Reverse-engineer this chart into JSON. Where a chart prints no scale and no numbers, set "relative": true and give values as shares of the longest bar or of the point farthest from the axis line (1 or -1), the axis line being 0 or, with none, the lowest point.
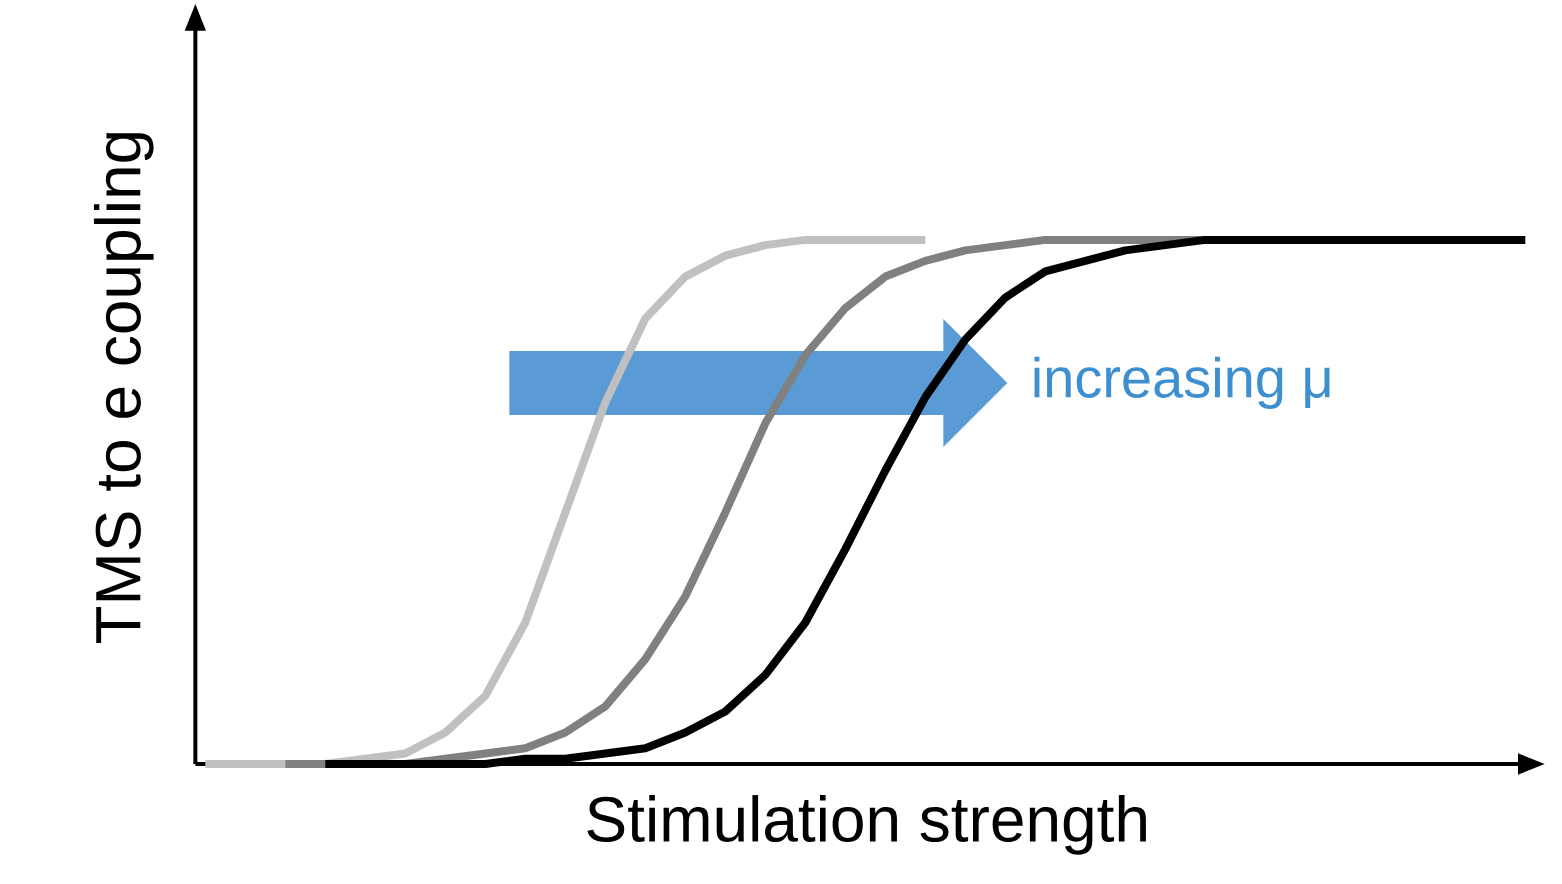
{
  "chart_data": {
    "type": "line",
    "relative": true,
    "xlabel": "Stimulation strength",
    "ylabel": "TMS to e coupling",
    "marker": "none",
    "line_style": "solid",
    "categories": [
      null,
      null,
      null,
      null,
      null,
      null,
      null,
      null,
      null,
      null,
      null,
      null,
      null,
      null,
      null,
      null,
      null,
      null,
      null,
      null,
      null,
      null,
      null,
      null,
      null,
      null,
      null,
      null,
      null,
      null,
      null,
      null,
      null,
      null
    ],
    "series": [
      {
        "color": "#c0c0c0",
        "values": [
          0,
          0,
          0,
          0,
          0.01,
          0.02,
          0.06,
          0.13,
          0.27,
          0.48,
          0.69,
          0.85,
          0.93,
          0.97,
          0.99,
          1,
          1,
          1,
          1,
          null,
          null,
          null,
          null,
          null,
          null,
          null,
          null,
          null,
          null,
          null,
          null,
          null,
          null,
          null
        ]
      },
      {
        "color": "#808080",
        "values": [
          null,
          null,
          0,
          0,
          0,
          0,
          0.01,
          0.02,
          0.03,
          0.06,
          0.11,
          0.2,
          0.32,
          0.48,
          0.65,
          0.78,
          0.87,
          0.93,
          0.96,
          0.98,
          0.99,
          1,
          1,
          1,
          1,
          1,
          null,
          null,
          null,
          null,
          null,
          null,
          null,
          null
        ]
      },
      {
        "color": "#000000",
        "values": [
          null,
          null,
          null,
          0,
          0,
          0,
          0,
          0,
          0.01,
          0.01,
          0.02,
          0.03,
          0.06,
          0.1,
          0.17,
          0.27,
          0.41,
          0.56,
          0.7,
          0.81,
          0.89,
          0.94,
          0.96,
          0.98,
          0.99,
          1,
          1,
          1,
          1,
          1,
          1,
          1,
          1,
          1
        ]
      }
    ],
    "annotations": [
      "increasing μ"
    ]
  }
}
